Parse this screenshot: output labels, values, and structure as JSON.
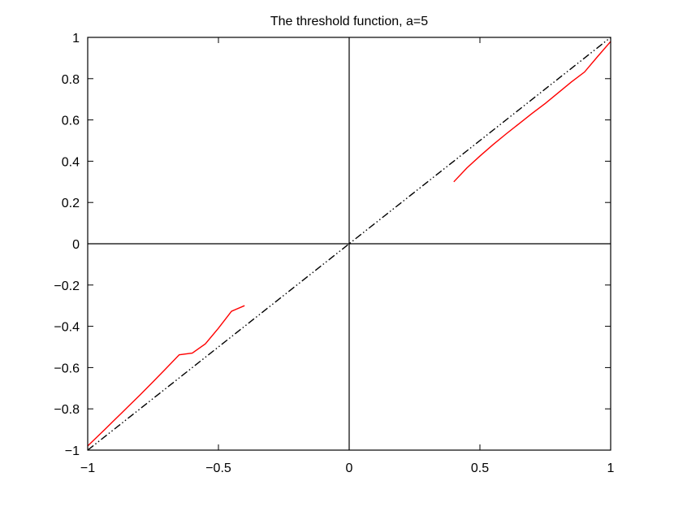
{
  "chart_data": {
    "type": "line",
    "title": "The threshold function, a=5",
    "xlabel": "",
    "ylabel": "",
    "xlim": [
      -1,
      1
    ],
    "ylim": [
      -1,
      1
    ],
    "grid": false,
    "x_ticks": [
      -1,
      -0.5,
      0,
      0.5,
      1
    ],
    "x_tick_labels": [
      "−1",
      "−0.5",
      "0",
      "0.5",
      "1"
    ],
    "y_ticks": [
      -1,
      -0.8,
      -0.6,
      -0.4,
      -0.2,
      0,
      0.2,
      0.4,
      0.6,
      0.8,
      1
    ],
    "y_tick_labels": [
      "−1",
      "−0.8",
      "−0.6",
      "−0.4",
      "−0.2",
      "0",
      "0.2",
      "0.4",
      "0.6",
      "0.8",
      "1"
    ],
    "reference_lines": [
      {
        "orientation": "vertical",
        "value": 0,
        "color": "#000000"
      },
      {
        "orientation": "horizontal",
        "value": 0,
        "color": "#000000"
      }
    ],
    "series": [
      {
        "color": "#000000",
        "style": "dash-dot-dot",
        "x": [
          -1,
          1
        ],
        "y": [
          -1,
          1
        ]
      },
      {
        "color": "#ff0000",
        "style": "solid",
        "x": [
          -1,
          -0.95,
          -0.9,
          -0.85,
          -0.8,
          -0.75,
          -0.7,
          -0.65,
          -0.6,
          -0.55,
          -0.5,
          -0.45,
          -0.4
        ],
        "y": [
          -0.98,
          -0.919,
          -0.857,
          -0.795,
          -0.733,
          -0.669,
          -0.604,
          -0.538,
          -0.53,
          -0.485,
          -0.409,
          -0.327,
          -0.3
        ]
      },
      {
        "color": "#ff0000",
        "style": "solid",
        "x": [
          0.4,
          0.45,
          0.5,
          0.55,
          0.6,
          0.65,
          0.7,
          0.75,
          0.8,
          0.85,
          0.9,
          0.95,
          1
        ],
        "y": [
          0.3,
          0.367,
          0.425,
          0.48,
          0.532,
          0.582,
          0.632,
          0.68,
          0.732,
          0.784,
          0.832,
          0.907,
          0.98
        ]
      }
    ]
  }
}
